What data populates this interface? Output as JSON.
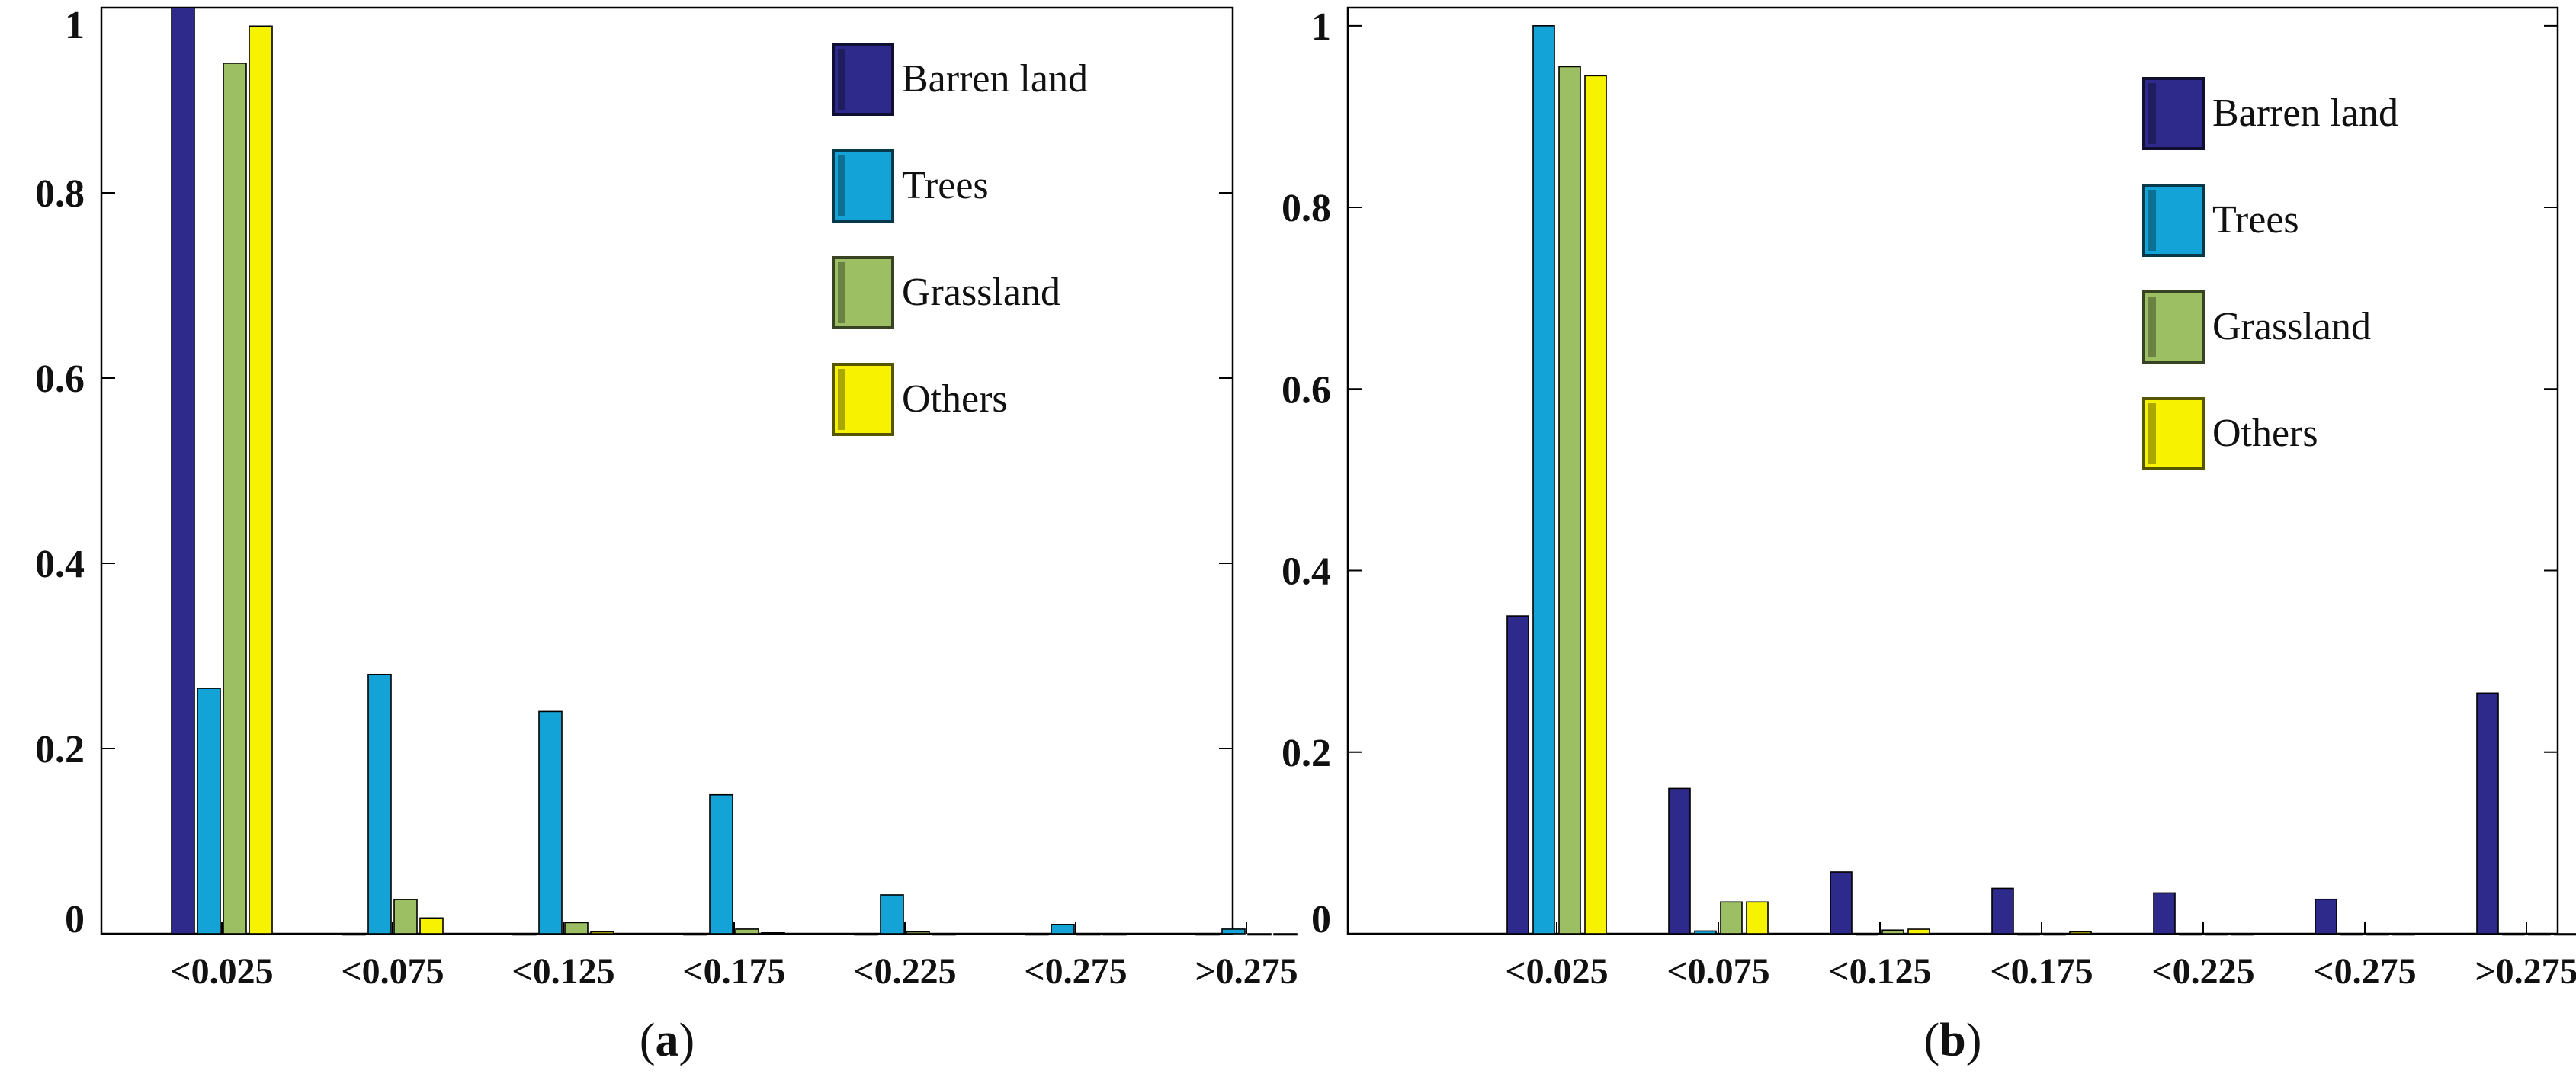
{
  "chart_data": [
    {
      "type": "bar",
      "panel_label": "a",
      "categories": [
        "<0.025",
        "<0.075",
        "<0.125",
        "<0.175",
        "<0.225",
        "<0.275",
        ">0.275"
      ],
      "ylim": [
        0,
        1
      ],
      "yticks": [
        0,
        0.2,
        0.4,
        0.6,
        0.8,
        1
      ],
      "ytick_labels": [
        "0",
        "0.2",
        "0.4",
        "0.6",
        "0.8",
        "1"
      ],
      "legend_position": "top-right",
      "series": [
        {
          "name": "Barren land",
          "color": "#2e2a8c",
          "values": [
            1.0,
            0.0,
            0.0,
            0.0,
            0.0,
            0.0,
            0.0
          ]
        },
        {
          "name": "Trees",
          "color": "#13a3d6",
          "values": [
            0.265,
            0.28,
            0.24,
            0.15,
            0.042,
            0.01,
            0.005
          ]
        },
        {
          "name": "Grassland",
          "color": "#9cbf63",
          "values": [
            0.94,
            0.037,
            0.012,
            0.005,
            0.002,
            0.0,
            0.0
          ]
        },
        {
          "name": "Others",
          "color": "#f7f300",
          "values": [
            0.98,
            0.017,
            0.002,
            0.001,
            0.0,
            0.0,
            0.0
          ]
        }
      ]
    },
    {
      "type": "bar",
      "panel_label": "b",
      "categories": [
        "<0.025",
        "<0.075",
        "<0.125",
        "<0.175",
        "<0.225",
        "<0.275",
        ">0.275"
      ],
      "ylim": [
        0,
        1.02
      ],
      "yticks": [
        0,
        0.2,
        0.4,
        0.6,
        0.8,
        1
      ],
      "ytick_labels": [
        "0",
        "0.2",
        "0.4",
        "0.6",
        "0.8",
        "1"
      ],
      "legend_position": "top-right",
      "series": [
        {
          "name": "Barren land",
          "color": "#2e2a8c",
          "values": [
            0.35,
            0.16,
            0.068,
            0.05,
            0.045,
            0.038,
            0.265
          ]
        },
        {
          "name": "Trees",
          "color": "#13a3d6",
          "values": [
            1.0,
            0.003,
            0.0,
            0.0,
            0.0,
            0.0,
            0.0
          ]
        },
        {
          "name": "Grassland",
          "color": "#9cbf63",
          "values": [
            0.955,
            0.035,
            0.004,
            0.0,
            0.0,
            0.0,
            0.0
          ]
        },
        {
          "name": "Others",
          "color": "#f7f300",
          "values": [
            0.945,
            0.035,
            0.005,
            0.002,
            0.0,
            0.0,
            0.0
          ]
        }
      ]
    }
  ]
}
